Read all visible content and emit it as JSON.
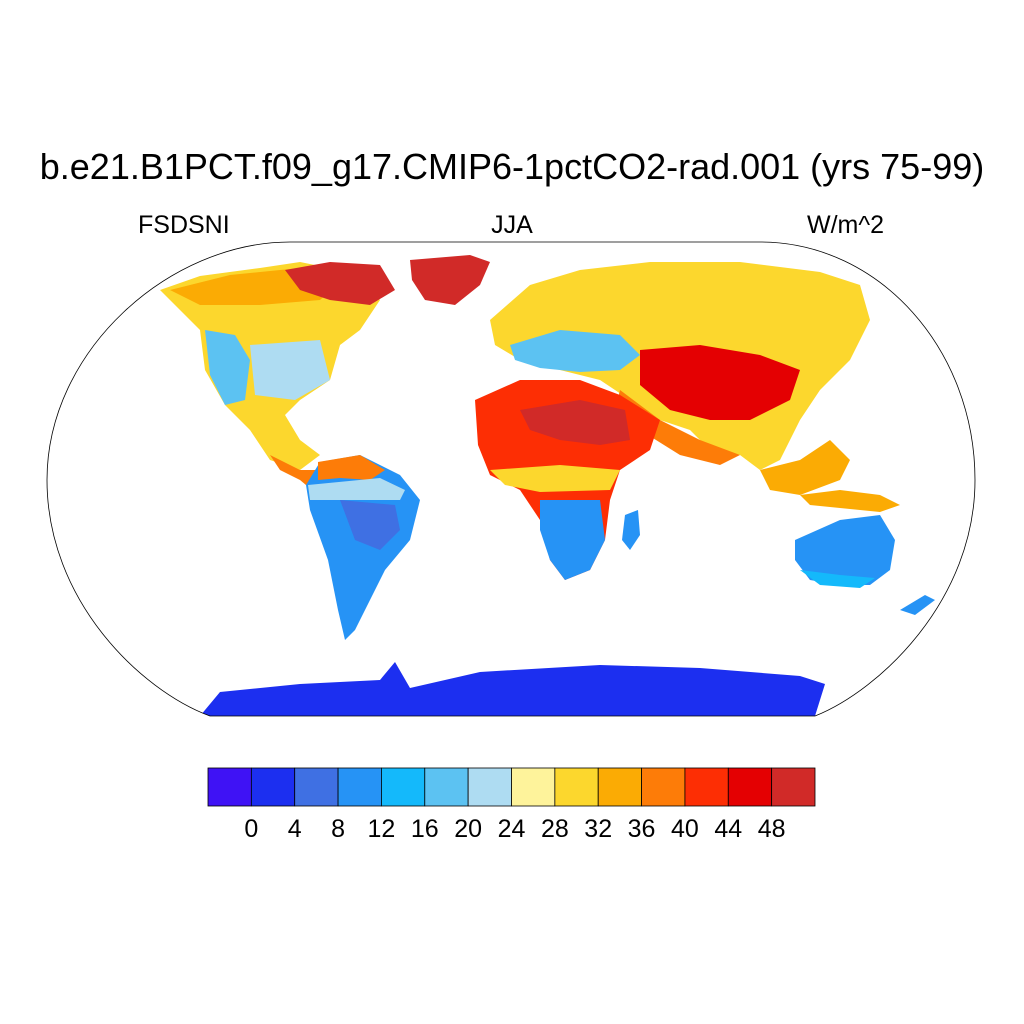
{
  "title": "b.e21.B1PCT.f09_g17.CMIP6-1pctCO2-rad.001 (yrs 75-99)",
  "left_label": "FSDSNI",
  "center_label": "JJA",
  "right_label": "W/m^2",
  "colorbar": {
    "colors": [
      "#3f12f5",
      "#1c2ff0",
      "#3f70e3",
      "#2693f5",
      "#14b9fb",
      "#5cc2f2",
      "#aedcf2",
      "#fef39b",
      "#fcd72d",
      "#fbab04",
      "#fd7c08",
      "#fd2e04",
      "#e40002",
      "#d12a28"
    ],
    "tick_labels": [
      "0",
      "4",
      "8",
      "12",
      "16",
      "20",
      "24",
      "28",
      "32",
      "36",
      "40",
      "44",
      "48"
    ]
  },
  "map": {
    "projection": "Robinson",
    "ocean_color": "#ffffff",
    "outline_color": "#000000"
  }
}
